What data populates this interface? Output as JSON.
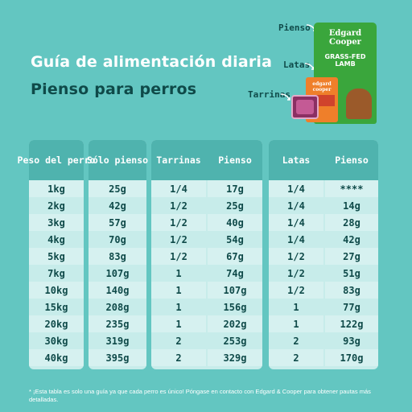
{
  "header": {
    "title": "Guía de alimentación diaria",
    "subtitle": "Pienso para perros"
  },
  "product_labels": {
    "pienso": "Pienso",
    "latas": "Latas",
    "tarrinas": "Tarrinas"
  },
  "product_art": {
    "bag_logo": "Edgard Cooper",
    "bag_name": "GRASS-FED LAMB",
    "box_logo": "edgard cooper"
  },
  "table1": {
    "headers": [
      "Peso del perro",
      "Sólo pienso"
    ],
    "rows": [
      [
        "1kg",
        "25g"
      ],
      [
        "2kg",
        "42g"
      ],
      [
        "3kg",
        "57g"
      ],
      [
        "4kg",
        "70g"
      ],
      [
        "5kg",
        "83g"
      ],
      [
        "7kg",
        "107g"
      ],
      [
        "10kg",
        "140g"
      ],
      [
        "15kg",
        "208g"
      ],
      [
        "20kg",
        "235g"
      ],
      [
        "30kg",
        "319g"
      ],
      [
        "40kg",
        "395g"
      ]
    ]
  },
  "table2": {
    "headers": [
      "Tarrinas",
      "Pienso"
    ],
    "rows": [
      [
        "1/4",
        "17g"
      ],
      [
        "1/2",
        "25g"
      ],
      [
        "1/2",
        "40g"
      ],
      [
        "1/2",
        "54g"
      ],
      [
        "1/2",
        "67g"
      ],
      [
        "1",
        "74g"
      ],
      [
        "1",
        "107g"
      ],
      [
        "1",
        "156g"
      ],
      [
        "1",
        "202g"
      ],
      [
        "2",
        "253g"
      ],
      [
        "2",
        "329g"
      ]
    ]
  },
  "table3": {
    "headers": [
      "Latas",
      "Pienso"
    ],
    "rows": [
      [
        "1/4",
        "****"
      ],
      [
        "1/4",
        "14g"
      ],
      [
        "1/4",
        "28g"
      ],
      [
        "1/4",
        "42g"
      ],
      [
        "1/2",
        "27g"
      ],
      [
        "1/2",
        "51g"
      ],
      [
        "1/2",
        "83g"
      ],
      [
        "1",
        "77g"
      ],
      [
        "1",
        "122g"
      ],
      [
        "2",
        "93g"
      ],
      [
        "2",
        "170g"
      ]
    ]
  },
  "footnote": "* ¡Esta tabla es solo una guía ya que cada perro es único! Póngase en contacto con Edgard & Cooper para obtener pautas más detalladas.",
  "colors": {
    "background": "#63c6c1",
    "light_column": "#c7ecea",
    "dark_header": "#4fb3ae",
    "text_dark": "#0f4a49"
  }
}
